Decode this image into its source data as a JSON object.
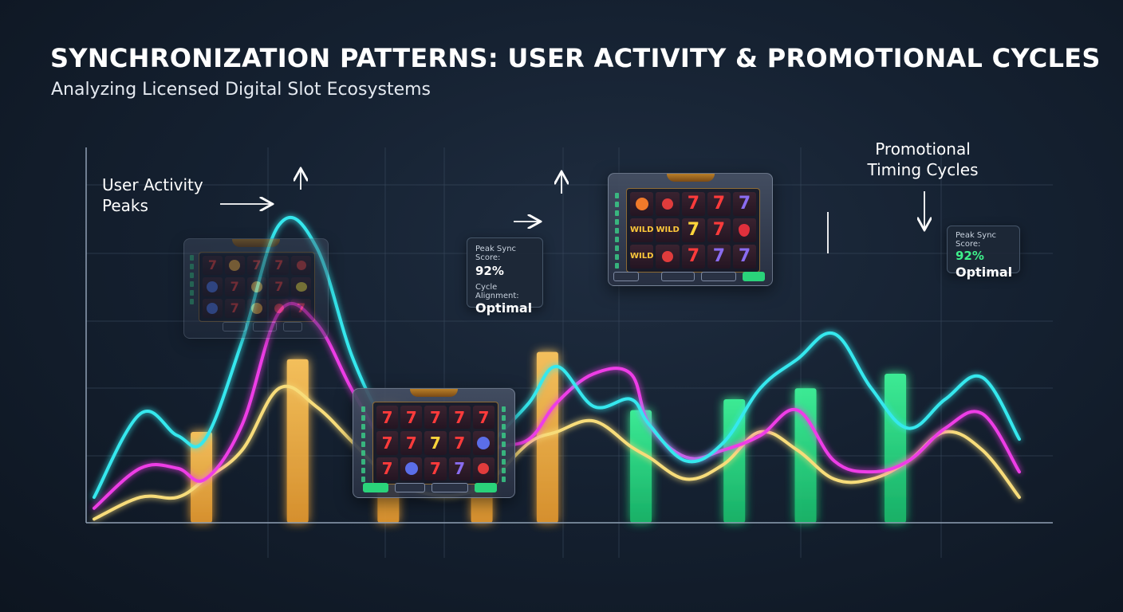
{
  "title": "SYNCHRONIZATION PATTERNS: USER ACTIVITY & PROMOTIONAL CYCLES",
  "subtitle": "Analyzing Licensed Digital Slot Ecosystems",
  "annotations": {
    "user_activity_line1": "User Activity",
    "user_activity_line2": "Peaks",
    "promo_line1": "Promotional",
    "promo_line2": "Timing Cycles"
  },
  "card_left": {
    "label1": "Peak Sync Score:",
    "value1": "92%",
    "label2": "Cycle Alignment:",
    "value2": "Optimal"
  },
  "card_right": {
    "label1": "Peak Sync Score:",
    "value1": "92%",
    "value2": "Optimal"
  },
  "slot_symbols": {
    "seven": "7",
    "wild": "WILD"
  },
  "colors": {
    "cyan": "#36e8ee",
    "magenta": "#ee3ce6",
    "yellow": "#f7dc7a",
    "orange_bar": "#f6b24c",
    "green_bar": "#2ee383",
    "grid": "#3a4a5e",
    "background": "#152131"
  },
  "chart_data": {
    "type": "line",
    "x_range": [
      0,
      100
    ],
    "y_range": [
      0,
      100
    ],
    "grid": true,
    "series": [
      {
        "color": "cyan",
        "x": [
          0,
          5,
          9,
          12,
          16,
          20,
          24,
          28,
          32,
          36,
          40,
          43,
          47,
          50,
          54,
          58,
          60,
          64,
          68,
          72,
          76,
          80,
          84,
          88,
          92,
          96,
          100
        ],
        "y": [
          7,
          30,
          24,
          23,
          50,
          82,
          76,
          45,
          25,
          15,
          12,
          22,
          33,
          43,
          32,
          34,
          27,
          17,
          22,
          37,
          45,
          52,
          37,
          26,
          34,
          40,
          23
        ]
      },
      {
        "color": "magenta",
        "x": [
          0,
          5,
          9,
          12,
          16,
          20,
          24,
          28,
          32,
          36,
          40,
          43,
          47,
          50,
          54,
          58,
          60,
          64,
          68,
          72,
          76,
          80,
          84,
          88,
          92,
          96,
          100
        ],
        "y": [
          4,
          15,
          15,
          12,
          27,
          58,
          55,
          36,
          20,
          18,
          11,
          20,
          23,
          33,
          41,
          41,
          27,
          18,
          20,
          24,
          31,
          17,
          14,
          17,
          26,
          30,
          14
        ]
      },
      {
        "color": "yellow",
        "x": [
          0,
          5,
          9,
          12,
          16,
          20,
          24,
          28,
          32,
          36,
          40,
          43,
          47,
          50,
          54,
          58,
          60,
          64,
          68,
          72,
          76,
          80,
          84,
          88,
          92,
          96,
          100
        ],
        "y": [
          1,
          7,
          7,
          12,
          20,
          37,
          32,
          22,
          12,
          8,
          8,
          12,
          22,
          25,
          28,
          21,
          18,
          12,
          16,
          25,
          20,
          12,
          12,
          17,
          25,
          20,
          7
        ]
      }
    ],
    "bars": [
      {
        "x": 11.6,
        "value": 25,
        "group": "user_activity"
      },
      {
        "x": 22.0,
        "value": 45,
        "group": "user_activity"
      },
      {
        "x": 31.8,
        "value": 33,
        "group": "user_activity"
      },
      {
        "x": 41.9,
        "value": 28,
        "group": "user_activity"
      },
      {
        "x": 49.0,
        "value": 47,
        "group": "user_activity"
      },
      {
        "x": 59.1,
        "value": 31,
        "group": "promotional"
      },
      {
        "x": 69.2,
        "value": 34,
        "group": "promotional"
      },
      {
        "x": 76.9,
        "value": 37,
        "group": "promotional"
      },
      {
        "x": 86.6,
        "value": 41,
        "group": "promotional"
      }
    ]
  }
}
